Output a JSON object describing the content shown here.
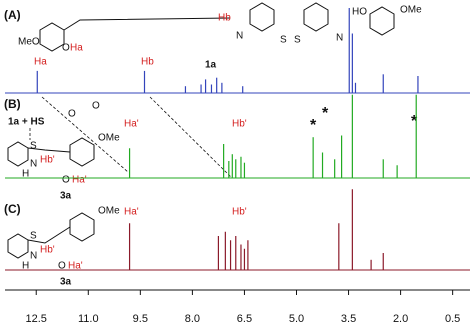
{
  "chart_data": {
    "type": "nmr",
    "xlim": [
      13.4,
      0
    ],
    "ylim": [
      0,
      100
    ],
    "xticks": [
      12.5,
      {
        "value": 11,
        "label": "11.0"
      },
      9.5,
      {
        "value": 8,
        "label": "8.0"
      },
      6.5,
      {
        "value": 5,
        "label": "5.0"
      },
      3.5,
      {
        "value": 2,
        "label": "2.0"
      },
      0.5
    ],
    "series": [
      {
        "name": "(A)",
        "color": "#3344bb",
        "x": [
          12.47,
          9.38,
          8.2,
          7.75,
          7.62,
          7.45,
          7.3,
          7.15,
          6.55,
          3.48,
          3.39,
          3.3,
          2.5,
          1.5
        ],
        "values": [
          26,
          26,
          8,
          10,
          16,
          10,
          18,
          12,
          8,
          100,
          70,
          12,
          22,
          20
        ]
      },
      {
        "name": "(B)",
        "color": "#22aa22",
        "x": [
          9.81,
          7.1,
          6.95,
          6.85,
          6.75,
          6.6,
          6.5,
          4.52,
          4.25,
          3.9,
          3.7,
          3.39,
          2.5,
          2.1,
          1.55
        ],
        "values": [
          35,
          40,
          20,
          28,
          22,
          25,
          18,
          48,
          30,
          22,
          50,
          98,
          22,
          15,
          98
        ]
      },
      {
        "name": "(C)",
        "color": "#8b1a2a",
        "x": [
          9.81,
          7.25,
          7.05,
          6.9,
          6.75,
          6.6,
          6.5,
          6.4,
          3.78,
          3.39,
          2.85,
          2.5
        ],
        "values": [
          55,
          40,
          45,
          35,
          40,
          30,
          25,
          35,
          55,
          95,
          12,
          20
        ]
      }
    ],
    "annotations": [
      "Ha",
      "Hb",
      "1a",
      "3a",
      "3a",
      "Ha'",
      "Hb'",
      "Ha'",
      "Hb'",
      "*",
      "*",
      "*",
      "Hb",
      "N",
      "S",
      "S",
      "N",
      "HO",
      "OMe",
      "MeO",
      "O",
      "Ha",
      "1a + HS",
      "O",
      "O",
      "S",
      "N",
      "H",
      "Hb'",
      "OMe",
      "O",
      "Ha'",
      "S",
      "N",
      "H",
      "Hb'",
      "OMe",
      "O",
      "Ha'"
    ]
  }
}
